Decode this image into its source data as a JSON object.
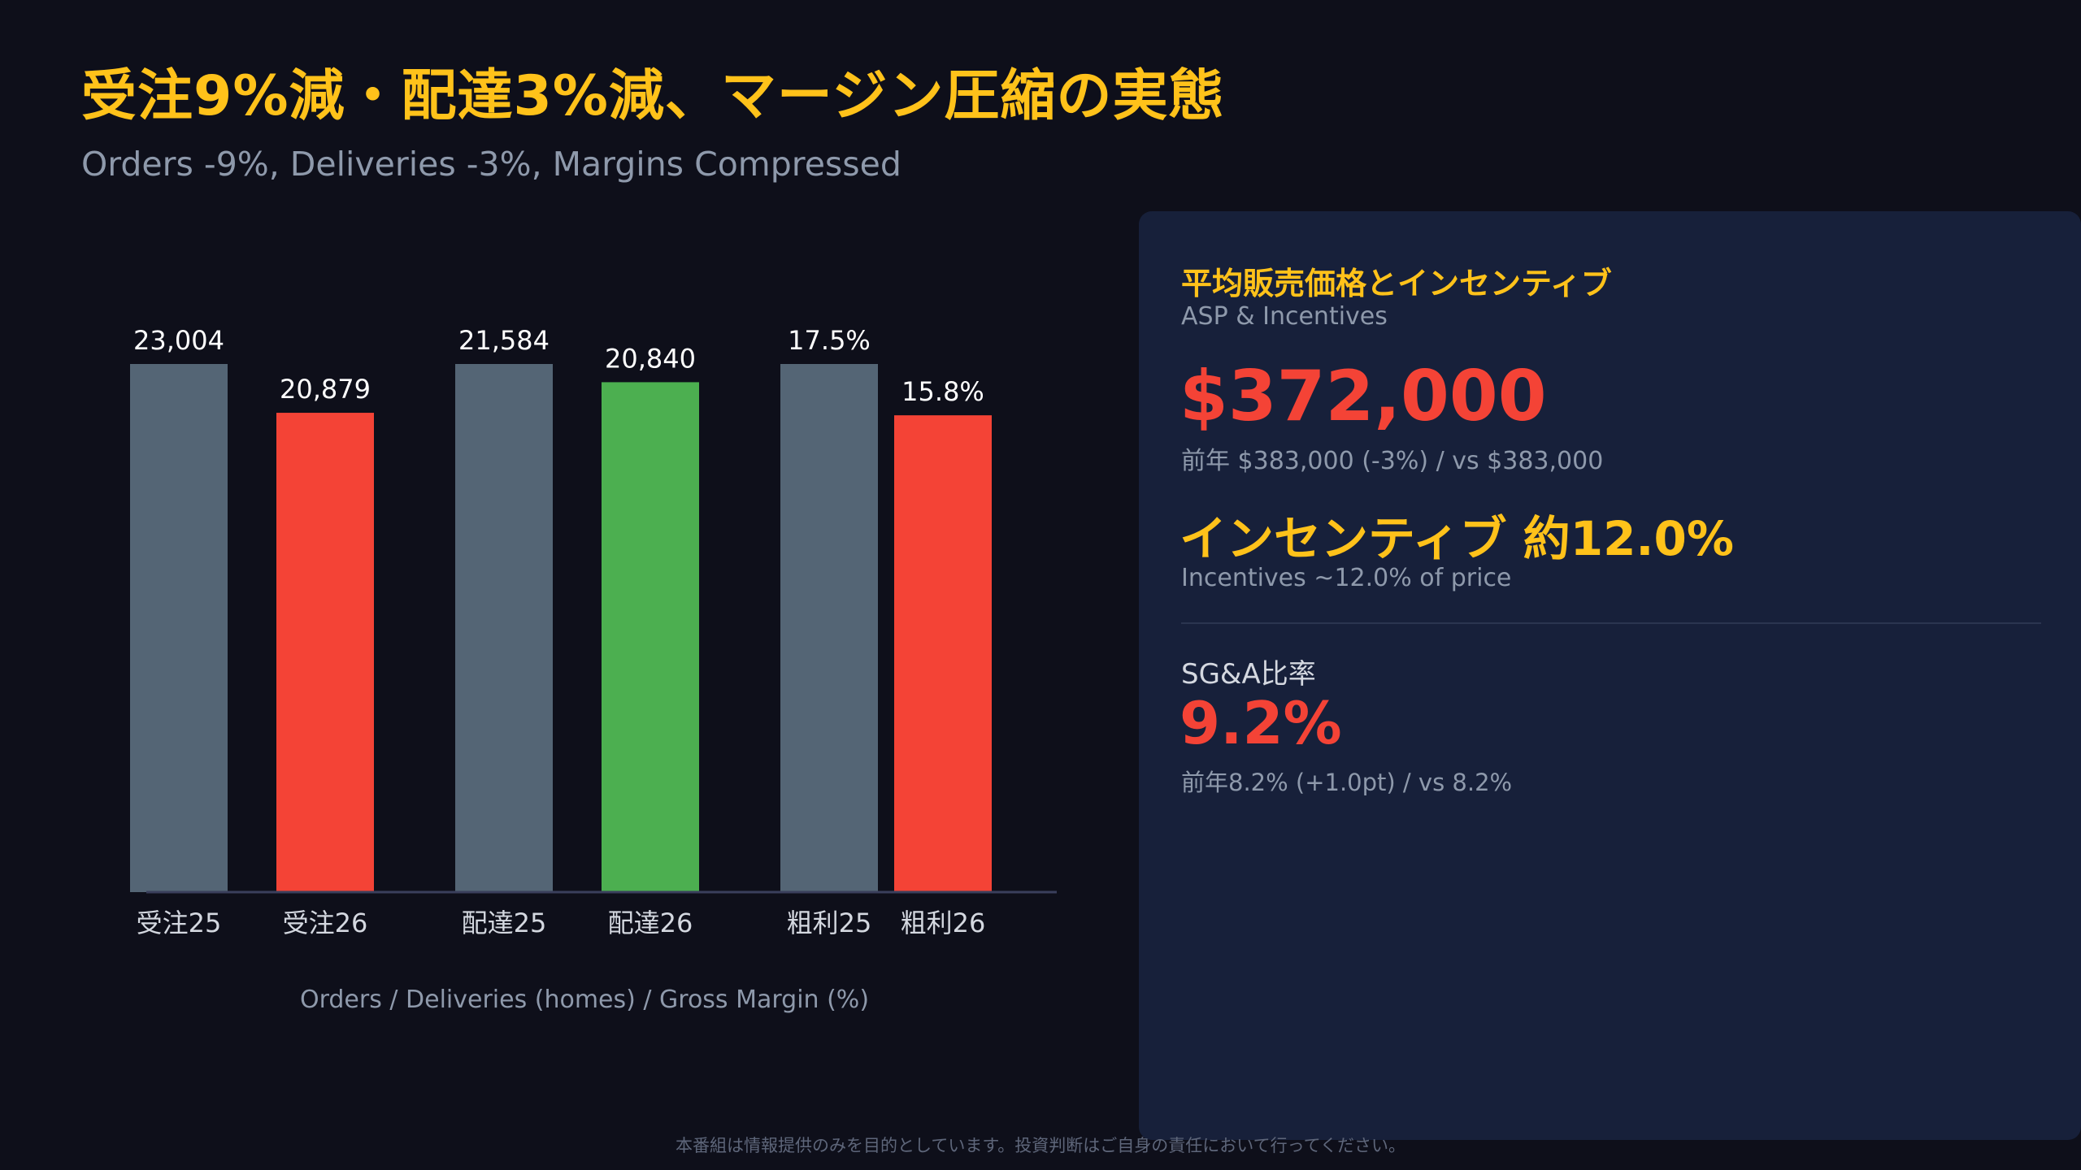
{
  "header": {
    "title": "受注9%減・配達3%減、マージン圧縮の実態",
    "subtitle": "Orders -9%, Deliveries -3%, Margins Compressed"
  },
  "chart_data": {
    "type": "bar",
    "categories": [
      "受注25",
      "受注26",
      "配達25",
      "配達26",
      "粗利25",
      "粗利26"
    ],
    "values": [
      23004,
      20879,
      21584,
      20840,
      17.5,
      15.8
    ],
    "value_labels": [
      "23,004",
      "20,879",
      "21,584",
      "20,840",
      "17.5%",
      "15.8%"
    ],
    "colors": [
      "#546575",
      "#f44336",
      "#546575",
      "#4caf50",
      "#546575",
      "#f44336"
    ],
    "groups": [
      {
        "categories": [
          "受注25",
          "受注26"
        ],
        "ylim": [
          0,
          23004
        ]
      },
      {
        "categories": [
          "配達25",
          "配達26"
        ],
        "ylim": [
          0,
          21584
        ]
      },
      {
        "categories": [
          "粗利25",
          "粗利26"
        ],
        "ylim": [
          0,
          17.5
        ]
      }
    ],
    "xlabel": "Orders / Deliveries (homes) / Gross Margin (%)",
    "grid": false
  },
  "panel": {
    "heading": "平均販売価格とインセンティブ",
    "heading_sub": "ASP & Incentives",
    "price": "$372,000",
    "price_note": "前年 $383,000 (-3%) / vs $383,000",
    "incentive": "インセンティブ 約12.0%",
    "incentive_note": "Incentives ~12.0% of price",
    "sga_label": "SG&A比率",
    "sga_value": "9.2%",
    "sga_note": "前年8.2% (+1.0pt) / vs 8.2%"
  },
  "footer": {
    "disclaimer": "本番組は情報提供のみを目的としています。投資判断はご自身の責任において行ってください。"
  }
}
